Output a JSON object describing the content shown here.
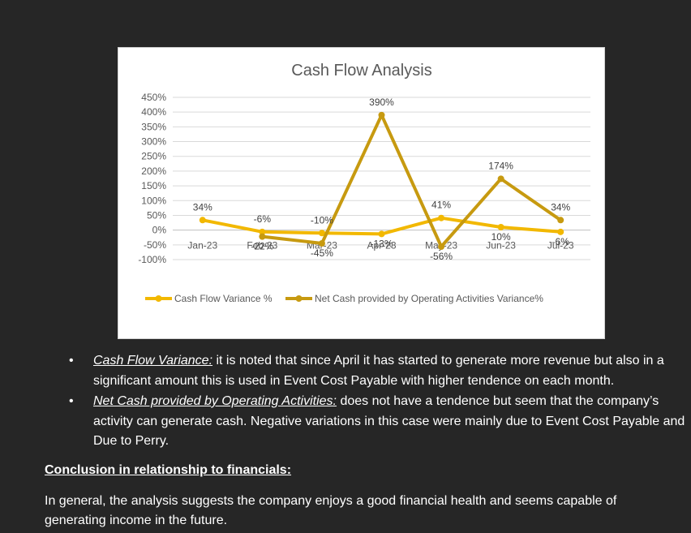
{
  "chart_data": {
    "type": "line",
    "title": "Cash Flow Analysis",
    "categories": [
      "Jan-23",
      "Feb-23",
      "Mar-23",
      "Apr-23",
      "May-23",
      "Jun-23",
      "Jul-23"
    ],
    "y_ticks": [
      "450%",
      "400%",
      "350%",
      "300%",
      "250%",
      "200%",
      "150%",
      "100%",
      "50%",
      "0%",
      "-50%",
      "-100%"
    ],
    "ylim": [
      -100,
      450
    ],
    "grid": true,
    "legend_position": "bottom",
    "series": [
      {
        "name": "Cash Flow Variance %",
        "color": "#f2b800",
        "values": [
          34,
          -6,
          -10,
          -13,
          41,
          10,
          -6
        ],
        "labels": [
          "34%",
          "-6%",
          "-10%",
          "-13%",
          "41%",
          "10%",
          "-6%"
        ]
      },
      {
        "name": "Net Cash provided by Operating Activities Variance%",
        "color": "#c79a10",
        "values": [
          null,
          -22,
          -45,
          390,
          -56,
          174,
          34
        ],
        "labels": [
          "",
          "-22%",
          "-45%",
          "390%",
          "-56%",
          "174%",
          "34%"
        ]
      }
    ]
  },
  "bullets": [
    {
      "term": "Cash Flow Variance:",
      "text": " it is noted that since April it has started to generate more revenue but also in a significant amount this is used in Event Cost Payable with higher tendence on each month."
    },
    {
      "term": "Net Cash provided by Operating Activities:",
      "text": " does not have a tendence but seem that the company’s activity can generate cash. Negative variations in this case were mainly due to Event Cost Payable and Due to Perry."
    }
  ],
  "conclusion": {
    "heading": "Conclusion in relationship to financials:",
    "text": "In general, the analysis suggests the company enjoys a good financial health and seems capable of generating income in the future."
  }
}
